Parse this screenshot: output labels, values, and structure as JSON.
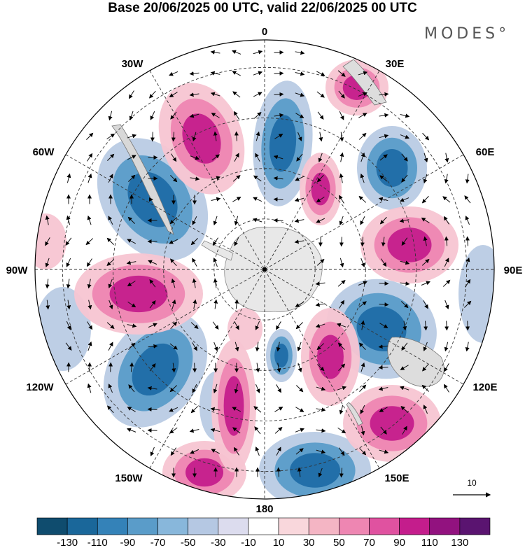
{
  "title": "Base 20/06/2025 00 UTC, valid 22/06/2025 00 UTC",
  "logo": "MODES°",
  "longitude_labels": {
    "top": "0",
    "bottom": "180",
    "left": "90W",
    "right": "90E",
    "upper_left_30": "30W",
    "upper_left_60": "60W",
    "upper_right_30": "30E",
    "upper_right_60": "60E",
    "lower_left_120": "120W",
    "lower_left_150": "150W",
    "lower_right_120": "120E",
    "lower_right_150": "150E"
  },
  "vector_reference": "10",
  "colorbar": {
    "colors": [
      "#0f4c6e",
      "#1a679a",
      "#3482b8",
      "#5a9cc9",
      "#88b7db",
      "#b5c8e3",
      "#dcdcee",
      "#ffffff",
      "#f9d7dc",
      "#f4b5c4",
      "#ee86b2",
      "#e052a0",
      "#c41d8c",
      "#92127f",
      "#5a1470"
    ],
    "labels": [
      "-130",
      "-110",
      "-90",
      "-70",
      "-50",
      "-30",
      "-10",
      "10",
      "30",
      "50",
      "70",
      "90",
      "110",
      "130"
    ]
  },
  "anomaly_colors": {
    "neg_strong": "#1f6da6",
    "neg_mid": "#5a9cc9",
    "neg_weak": "#b9cbe4",
    "pos_weak": "#f7c5d2",
    "pos_mid": "#ee86b2",
    "pos_strong": "#c41d8c",
    "land": "#e9e9e9"
  }
}
